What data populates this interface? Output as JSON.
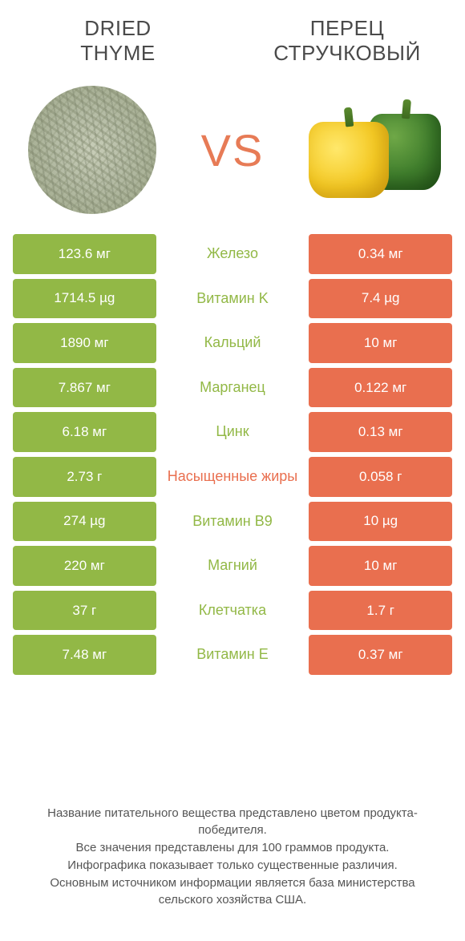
{
  "colors": {
    "green": "#92b846",
    "orange": "#e96f4f",
    "white": "#ffffff",
    "vs": "#e77b56"
  },
  "header": {
    "left_line1": "DRIED",
    "left_line2": "THYME",
    "right_line1": "ПЕРЕЦ",
    "right_line2": "СТРУЧКОВЫЙ"
  },
  "vs_label": "VS",
  "rows": [
    {
      "left": "123.6 мг",
      "label": "Железо",
      "right": "0.34 мг",
      "winner": "left"
    },
    {
      "left": "1714.5 µg",
      "label": "Витамин K",
      "right": "7.4 µg",
      "winner": "left"
    },
    {
      "left": "1890 мг",
      "label": "Кальций",
      "right": "10 мг",
      "winner": "left"
    },
    {
      "left": "7.867 мг",
      "label": "Марганец",
      "right": "0.122 мг",
      "winner": "left"
    },
    {
      "left": "6.18 мг",
      "label": "Цинк",
      "right": "0.13 мг",
      "winner": "left"
    },
    {
      "left": "2.73 г",
      "label": "Насыщенные жиры",
      "right": "0.058 г",
      "winner": "right"
    },
    {
      "left": "274 µg",
      "label": "Витамин B9",
      "right": "10 µg",
      "winner": "left"
    },
    {
      "left": "220 мг",
      "label": "Магний",
      "right": "10 мг",
      "winner": "left"
    },
    {
      "left": "37 г",
      "label": "Клетчатка",
      "right": "1.7 г",
      "winner": "left"
    },
    {
      "left": "7.48 мг",
      "label": "Витамин E",
      "right": "0.37 мг",
      "winner": "left"
    }
  ],
  "footer": {
    "line1": "Название питательного вещества представлено цветом продукта-победителя.",
    "line2": "Все значения представлены для 100 граммов продукта.",
    "line3": "Инфографика показывает только существенные различия.",
    "line4": "Основным источником информации является база министерства сельского хозяйства США."
  }
}
